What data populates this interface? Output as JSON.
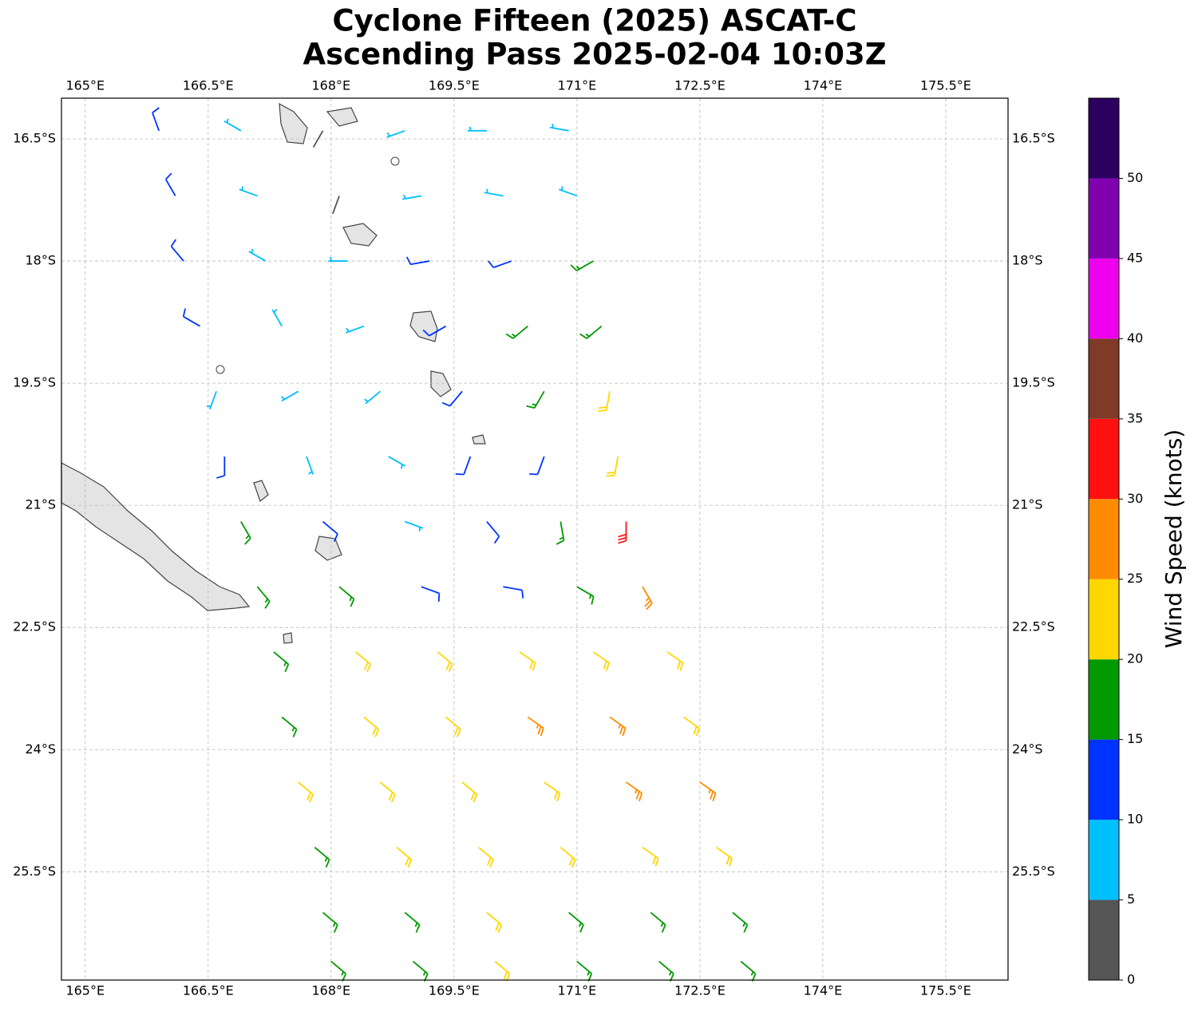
{
  "chart_data": {
    "type": "barbs",
    "title": "Cyclone Fifteen (2025) ASCAT-C",
    "subtitle": "Ascending Pass 2025-02-04 10:03Z",
    "xlim": [
      164.71,
      176.26
    ],
    "ylim": [
      -26.83,
      -16.0
    ],
    "xticks": [
      {
        "value": 165,
        "label": "165°E"
      },
      {
        "value": 166.5,
        "label": "166.5°E"
      },
      {
        "value": 168,
        "label": "168°E"
      },
      {
        "value": 169.5,
        "label": "169.5°E"
      },
      {
        "value": 171,
        "label": "171°E"
      },
      {
        "value": 172.5,
        "label": "172.5°E"
      },
      {
        "value": 174,
        "label": "174°E"
      },
      {
        "value": 175.5,
        "label": "175.5°E"
      }
    ],
    "yticks": [
      {
        "value": -16.5,
        "label": "16.5°S"
      },
      {
        "value": -18,
        "label": "18°S"
      },
      {
        "value": -19.5,
        "label": "19.5°S"
      },
      {
        "value": -21,
        "label": "21°S"
      },
      {
        "value": -22.5,
        "label": "22.5°S"
      },
      {
        "value": -24,
        "label": "24°S"
      },
      {
        "value": -25.5,
        "label": "25.5°S"
      }
    ],
    "grid": true,
    "barbs": {
      "lon": [
        165.9,
        166.9,
        167.9,
        168.9,
        169.9,
        170.9,
        166.1,
        167.1,
        168.1,
        169.1,
        170.1,
        171.0,
        166.2,
        167.2,
        168.2,
        169.2,
        170.2,
        171.2,
        166.4,
        167.4,
        168.4,
        169.4,
        170.4,
        171.3,
        166.6,
        167.6,
        168.6,
        169.6,
        170.6,
        171.4,
        166.7,
        167.7,
        168.7,
        169.7,
        170.6,
        171.5,
        166.9,
        167.9,
        168.9,
        169.9,
        170.8,
        171.6,
        167.1,
        168.1,
        169.1,
        170.1,
        171.0,
        171.8,
        167.3,
        168.3,
        169.3,
        170.3,
        171.2,
        172.1,
        167.4,
        168.4,
        169.4,
        170.4,
        171.4,
        172.3,
        167.6,
        168.6,
        169.6,
        170.6,
        171.6,
        172.5,
        167.8,
        168.8,
        169.8,
        170.8,
        171.8,
        172.7,
        167.9,
        168.9,
        169.9,
        170.9,
        171.9,
        172.9,
        168.0,
        169.0,
        170.0,
        171.0,
        172.0,
        173.0
      ],
      "lat": [
        -16.4,
        -16.4,
        -16.4,
        -16.4,
        -16.4,
        -16.4,
        -17.2,
        -17.2,
        -17.2,
        -17.2,
        -17.2,
        -17.2,
        -18.0,
        -18.0,
        -18.0,
        -18.0,
        -18.0,
        -18.0,
        -18.8,
        -18.8,
        -18.8,
        -18.8,
        -18.8,
        -18.8,
        -19.6,
        -19.6,
        -19.6,
        -19.6,
        -19.6,
        -19.6,
        -20.4,
        -20.4,
        -20.4,
        -20.4,
        -20.4,
        -20.4,
        -21.2,
        -21.2,
        -21.2,
        -21.2,
        -21.2,
        -21.2,
        -22.0,
        -22.0,
        -22.0,
        -22.0,
        -22.0,
        -22.0,
        -22.8,
        -22.8,
        -22.8,
        -22.8,
        -22.8,
        -22.8,
        -23.6,
        -23.6,
        -23.6,
        -23.6,
        -23.6,
        -23.6,
        -24.4,
        -24.4,
        -24.4,
        -24.4,
        -24.4,
        -24.4,
        -25.2,
        -25.2,
        -25.2,
        -25.2,
        -25.2,
        -25.2,
        -26.0,
        -26.0,
        -26.0,
        -26.0,
        -26.0,
        -26.0,
        -26.6,
        -26.6,
        -26.6,
        -26.6,
        -26.6,
        -26.6
      ],
      "speed": [
        12,
        8,
        3,
        8,
        8,
        8,
        12,
        8,
        3,
        8,
        8,
        8,
        12,
        8,
        7,
        12,
        13,
        17,
        12,
        8,
        8,
        12,
        17,
        17,
        8,
        8,
        8,
        12,
        17,
        22,
        12,
        8,
        8,
        12,
        13,
        22,
        17,
        12,
        8,
        12,
        17,
        32,
        17,
        17,
        12,
        12,
        17,
        27,
        17,
        22,
        22,
        22,
        22,
        22,
        17,
        22,
        22,
        27,
        27,
        22,
        22,
        22,
        22,
        22,
        27,
        27,
        17,
        22,
        22,
        22,
        22,
        22,
        17,
        17,
        22,
        17,
        17,
        17,
        17,
        17,
        22,
        17,
        17,
        17
      ],
      "direction": [
        340,
        300,
        210,
        250,
        270,
        280,
        330,
        290,
        200,
        260,
        280,
        290,
        320,
        300,
        270,
        260,
        250,
        240,
        300,
        330,
        250,
        240,
        230,
        230,
        200,
        240,
        230,
        220,
        210,
        190,
        180,
        160,
        120,
        200,
        200,
        190,
        150,
        130,
        110,
        140,
        170,
        180,
        140,
        130,
        110,
        100,
        120,
        150,
        130,
        130,
        130,
        125,
        125,
        125,
        130,
        130,
        130,
        125,
        125,
        125,
        130,
        130,
        130,
        125,
        125,
        125,
        130,
        130,
        130,
        130,
        125,
        125,
        130,
        130,
        130,
        130,
        130,
        130,
        130,
        130,
        130,
        130,
        130,
        130
      ]
    },
    "colorbar": {
      "label": "Wind Speed (knots)",
      "bounds": [
        0,
        5,
        10,
        15,
        20,
        25,
        30,
        35,
        40,
        45,
        50,
        55
      ],
      "colors": [
        "#555555",
        "#00bfff",
        "#0033ff",
        "#009900",
        "#ffd700",
        "#ff8c00",
        "#ff1111",
        "#7f3a28",
        "#ee00ee",
        "#8000b0",
        "#2b005e"
      ],
      "ticks": [
        0,
        5,
        10,
        15,
        20,
        25,
        30,
        35,
        40,
        45,
        50
      ]
    }
  }
}
